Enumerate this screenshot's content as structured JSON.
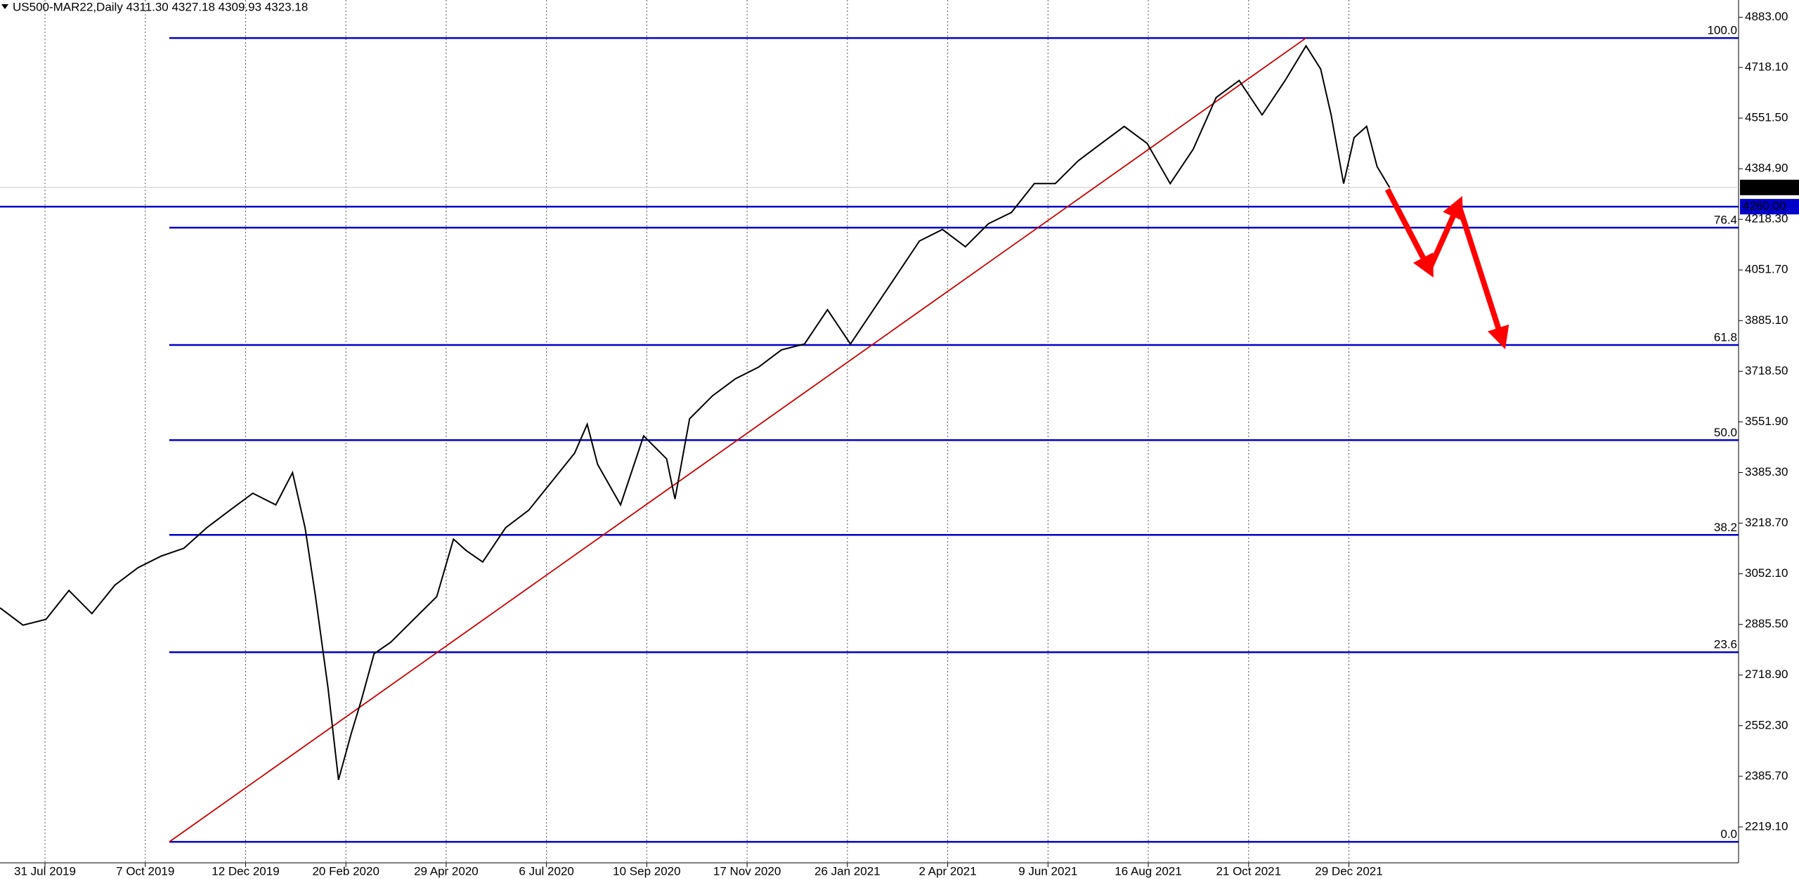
{
  "chart_data": {
    "type": "line",
    "title": "US500-MAR22,Daily  4311.30 4327.18 4309.93 4323.18",
    "x": [
      0,
      11,
      22,
      33,
      44,
      55,
      66,
      77,
      88,
      99,
      110,
      121,
      132,
      140,
      146,
      151,
      157,
      162,
      168,
      173,
      179,
      187,
      198,
      209,
      217,
      223,
      231,
      242,
      253,
      264,
      275,
      281,
      286,
      297,
      308,
      319,
      323,
      330,
      341,
      352,
      363,
      374,
      385,
      396,
      407,
      418,
      429,
      440,
      451,
      462,
      473,
      484,
      495,
      505,
      516,
      527,
      538,
      549,
      560,
      571,
      582,
      593,
      604,
      615,
      625,
      632,
      637,
      643,
      648,
      654,
      659,
      665
    ],
    "series": [
      {
        "color": "#000000",
        "values": [
          2940,
          2883,
          2902,
          2997,
          2921,
          3015,
          3072,
          3110,
          3136,
          3204,
          3261,
          3317,
          3279,
          3385,
          3204,
          2977,
          2676,
          2374,
          2525,
          2638,
          2789,
          2827,
          2902,
          2977,
          3166,
          3129,
          3091,
          3204,
          3261,
          3355,
          3449,
          3544,
          3412,
          3279,
          3506,
          3430,
          3298,
          3562,
          3638,
          3694,
          3732,
          3789,
          3808,
          3921,
          3808,
          3921,
          4034,
          4147,
          4185,
          4128,
          4204,
          4241,
          4336,
          4336,
          4411,
          4468,
          4524,
          4468,
          4336,
          4449,
          4619,
          4675,
          4562,
          4675,
          4789,
          4713,
          4562,
          4336,
          4487,
          4524,
          4392,
          4323
        ]
      }
    ],
    "xlim": [
      0,
      832
    ],
    "ylim": [
      2101,
      4940
    ],
    "xticks": [
      {
        "value": 0,
        "label": "31 Jul 2019"
      },
      {
        "value": 48,
        "label": "7 Oct 2019"
      },
      {
        "value": 96,
        "label": "12 Dec 2019"
      },
      {
        "value": 144,
        "label": "20 Feb 2020"
      },
      {
        "value": 192,
        "label": "29 Apr 2020"
      },
      {
        "value": 240,
        "label": "6 Jul 2020"
      },
      {
        "value": 288,
        "label": "10 Sep 2020"
      },
      {
        "value": 336,
        "label": "17 Nov 2020"
      },
      {
        "value": 384,
        "label": "26 Jan 2021"
      },
      {
        "value": 432,
        "label": "2 Apr 2021"
      },
      {
        "value": 480,
        "label": "9 Jun 2021"
      },
      {
        "value": 528,
        "label": "16 Aug 2021"
      },
      {
        "value": 576,
        "label": "21 Oct 2021"
      },
      {
        "value": 624,
        "label": "29 Dec 2021"
      }
    ],
    "yticks": [
      {
        "value": 4883,
        "label": "4883.00"
      },
      {
        "value": 4718.1,
        "label": "4718.10"
      },
      {
        "value": 4551.5,
        "label": "4551.50"
      },
      {
        "value": 4384.9,
        "label": "4384.90"
      },
      {
        "value": 4218.3,
        "label": "4218.30"
      },
      {
        "value": 4051.7,
        "label": "4051.70"
      },
      {
        "value": 3885.1,
        "label": "3885.10"
      },
      {
        "value": 3718.5,
        "label": "3718.50"
      },
      {
        "value": 3551.9,
        "label": "3551.90"
      },
      {
        "value": 3385.3,
        "label": "3385.30"
      },
      {
        "value": 3218.7,
        "label": "3218.70"
      },
      {
        "value": 3052.1,
        "label": "3052.10"
      },
      {
        "value": 2885.5,
        "label": "2885.50"
      },
      {
        "value": 2718.9,
        "label": "2718.90"
      },
      {
        "value": 2552.3,
        "label": "2552.30"
      },
      {
        "value": 2385.7,
        "label": "2385.70"
      },
      {
        "value": 2219.1,
        "label": "2219.10"
      }
    ],
    "fib": {
      "x_start": 81,
      "color": "#0000c8",
      "levels": [
        {
          "level": "100.0",
          "price": 4815
        },
        {
          "level": "76.4",
          "price": 4191
        },
        {
          "level": "61.8",
          "price": 3805
        },
        {
          "level": "50.0",
          "price": 3492
        },
        {
          "level": "38.2",
          "price": 3180
        },
        {
          "level": "23.6",
          "price": 2794
        },
        {
          "level": "0.0",
          "price": 2170
        }
      ]
    },
    "trendline": {
      "x": [
        81,
        625
      ],
      "y": [
        2170,
        4815
      ],
      "color": "#cc0000"
    },
    "hline": {
      "value": 4260,
      "label": "4260.00",
      "color": "#0000c8"
    },
    "current_price": {
      "value": 4323.18,
      "label": "4323.18"
    },
    "projection": {
      "x": [
        664,
        684,
        698,
        719
      ],
      "y": [
        4317,
        4053,
        4268,
        3819
      ],
      "color": "#ff0000"
    }
  }
}
